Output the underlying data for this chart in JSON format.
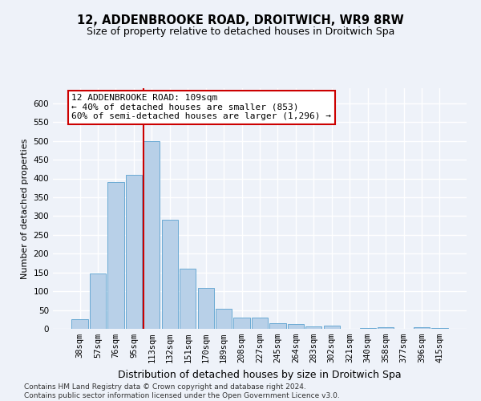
{
  "title": "12, ADDENBROOKE ROAD, DROITWICH, WR9 8RW",
  "subtitle": "Size of property relative to detached houses in Droitwich Spa",
  "xlabel": "Distribution of detached houses by size in Droitwich Spa",
  "ylabel": "Number of detached properties",
  "categories": [
    "38sqm",
    "57sqm",
    "76sqm",
    "95sqm",
    "113sqm",
    "132sqm",
    "151sqm",
    "170sqm",
    "189sqm",
    "208sqm",
    "227sqm",
    "245sqm",
    "264sqm",
    "283sqm",
    "302sqm",
    "321sqm",
    "340sqm",
    "358sqm",
    "377sqm",
    "396sqm",
    "415sqm"
  ],
  "values": [
    25,
    148,
    390,
    410,
    500,
    290,
    160,
    108,
    53,
    30,
    30,
    16,
    12,
    7,
    9,
    0,
    3,
    4,
    0,
    4,
    3
  ],
  "bar_color": "#b8d0e8",
  "bar_edge_color": "#6aaad4",
  "vline_x_index": 4,
  "vline_color": "#cc0000",
  "annotation_text": "12 ADDENBROOKE ROAD: 109sqm\n← 40% of detached houses are smaller (853)\n60% of semi-detached houses are larger (1,296) →",
  "annotation_box_color": "white",
  "annotation_box_edge_color": "#cc0000",
  "ylim": [
    0,
    640
  ],
  "yticks": [
    0,
    50,
    100,
    150,
    200,
    250,
    300,
    350,
    400,
    450,
    500,
    550,
    600
  ],
  "background_color": "#eef2f9",
  "grid_color": "white",
  "footer_text": "Contains HM Land Registry data © Crown copyright and database right 2024.\nContains public sector information licensed under the Open Government Licence v3.0.",
  "title_fontsize": 10.5,
  "subtitle_fontsize": 9,
  "xlabel_fontsize": 9,
  "ylabel_fontsize": 8,
  "tick_fontsize": 7.5,
  "annotation_fontsize": 8,
  "footer_fontsize": 6.5
}
